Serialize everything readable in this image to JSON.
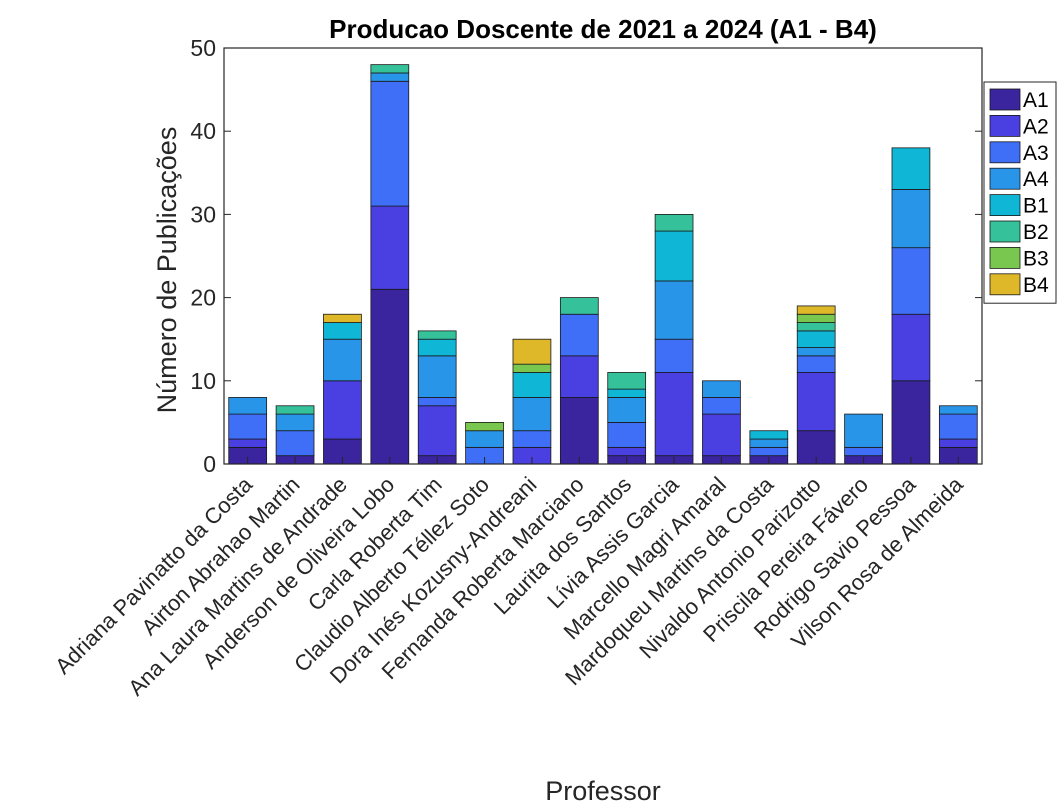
{
  "chart_data": {
    "type": "bar",
    "stacked": true,
    "title": "Producao Doscente de 2021 a 2024 (A1 - B4)",
    "xlabel": "Professor",
    "ylabel": "Número de Publicações",
    "ylim": [
      0,
      50
    ],
    "yticks": [
      0,
      10,
      20,
      30,
      40,
      50
    ],
    "grid": false,
    "legend_position": "outside-top-right",
    "categories": [
      "Adriana Pavinatto da Costa",
      "Airton Abrahao Martin",
      "Ana Laura Martins de Andrade",
      "Anderson de Oliveira Lobo",
      "Carla Roberta Tim",
      "Claudio Alberto Téllez Soto",
      "Dora Inés Kozusny-Andreani",
      "Fernanda Roberta Marciano",
      "Laurita dos Santos",
      "Lívia Assis Garcia",
      "Marcello Magri Amaral",
      "Mardoqueu Martins da Costa",
      "Nivaldo Antonio Parizotto",
      "Priscila Pereira Fávero",
      "Rodrigo Savio Pessoa",
      "Vilson Rosa de Almeida"
    ],
    "series": [
      {
        "name": "A1",
        "color": "#3a259f",
        "values": [
          2,
          1,
          3,
          21,
          1,
          0,
          0,
          8,
          1,
          1,
          1,
          1,
          4,
          1,
          10,
          2
        ]
      },
      {
        "name": "A2",
        "color": "#4a3fe0",
        "values": [
          1,
          0,
          7,
          10,
          6,
          0,
          2,
          5,
          1,
          10,
          5,
          0,
          7,
          0,
          8,
          1
        ]
      },
      {
        "name": "A3",
        "color": "#3f6ef7",
        "values": [
          3,
          3,
          0,
          15,
          1,
          2,
          2,
          5,
          3,
          4,
          2,
          1,
          2,
          1,
          8,
          3
        ]
      },
      {
        "name": "A4",
        "color": "#2995e8",
        "values": [
          2,
          2,
          5,
          1,
          5,
          2,
          4,
          0,
          3,
          7,
          2,
          1,
          1,
          4,
          7,
          1
        ]
      },
      {
        "name": "B1",
        "color": "#0fb6d6",
        "values": [
          0,
          0,
          2,
          0,
          2,
          0,
          3,
          0,
          1,
          6,
          0,
          1,
          2,
          0,
          5,
          0
        ]
      },
      {
        "name": "B2",
        "color": "#35c29a",
        "values": [
          0,
          1,
          0,
          1,
          1,
          0,
          0,
          2,
          2,
          2,
          0,
          0,
          1,
          0,
          0,
          0
        ]
      },
      {
        "name": "B3",
        "color": "#7ac74f",
        "values": [
          0,
          0,
          0,
          0,
          0,
          1,
          1,
          0,
          0,
          0,
          0,
          0,
          1,
          0,
          0,
          0
        ]
      },
      {
        "name": "B4",
        "color": "#dfb82a",
        "values": [
          0,
          0,
          1,
          0,
          0,
          0,
          3,
          0,
          0,
          0,
          0,
          0,
          1,
          0,
          0,
          0
        ]
      }
    ]
  }
}
